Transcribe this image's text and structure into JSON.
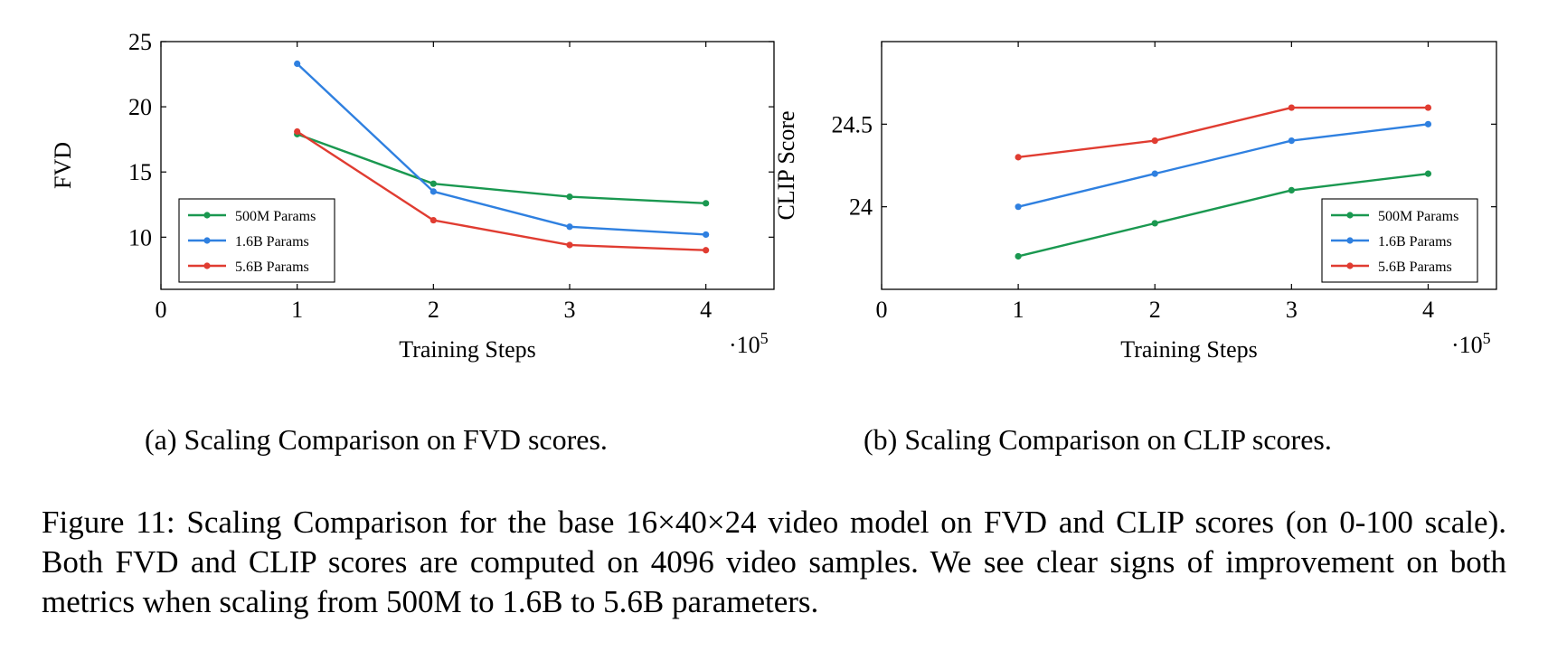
{
  "chart_data": [
    {
      "type": "line",
      "xlabel": "Training Steps",
      "x_multiplier": "·10",
      "x_multiplier_exp": "5",
      "ylabel": "FVD",
      "x": [
        1,
        2,
        3,
        4
      ],
      "xlim": [
        0,
        4.5
      ],
      "ylim": [
        6,
        25
      ],
      "xticks": [
        0,
        1,
        2,
        3,
        4
      ],
      "xtick_labels": [
        "0",
        "1",
        "2",
        "3",
        "4"
      ],
      "yticks": [
        10,
        15,
        20,
        25
      ],
      "ytick_labels": [
        "10",
        "15",
        "20",
        "25"
      ],
      "legend_position": "bottom-left",
      "series": [
        {
          "name": "500M Params",
          "color": "#1a9850",
          "values": [
            17.9,
            14.1,
            13.1,
            12.6
          ]
        },
        {
          "name": "1.6B Params",
          "color": "#2f80e0",
          "values": [
            23.3,
            13.5,
            10.8,
            10.2
          ]
        },
        {
          "name": "5.6B Params",
          "color": "#e03c31",
          "values": [
            18.1,
            11.3,
            9.4,
            9.0
          ]
        }
      ],
      "subcaption": "(a) Scaling Comparison on FVD scores."
    },
    {
      "type": "line",
      "xlabel": "Training Steps",
      "x_multiplier": "·10",
      "x_multiplier_exp": "5",
      "ylabel": "CLIP Score",
      "x": [
        1,
        2,
        3,
        4
      ],
      "xlim": [
        0,
        4.5
      ],
      "ylim": [
        23.5,
        25.0
      ],
      "xticks": [
        0,
        1,
        2,
        3,
        4
      ],
      "xtick_labels": [
        "0",
        "1",
        "2",
        "3",
        "4"
      ],
      "yticks": [
        24,
        24.5
      ],
      "ytick_labels": [
        "24",
        "24.5"
      ],
      "legend_position": "bottom-right",
      "series": [
        {
          "name": "500M Params",
          "color": "#1a9850",
          "values": [
            23.7,
            23.9,
            24.1,
            24.2
          ]
        },
        {
          "name": "1.6B Params",
          "color": "#2f80e0",
          "values": [
            24.0,
            24.2,
            24.4,
            24.5
          ]
        },
        {
          "name": "5.6B Params",
          "color": "#e03c31",
          "values": [
            24.3,
            24.4,
            24.6,
            24.6
          ]
        }
      ],
      "subcaption": "(b) Scaling Comparison on CLIP scores."
    }
  ],
  "caption": "Figure 11: Scaling Comparison for the base 16×40×24 video model on FVD and CLIP scores (on 0-100 scale). Both FVD and CLIP scores are computed on 4096 video samples. We see clear signs of improvement on both metrics when scaling from 500M to 1.6B to 5.6B parameters."
}
